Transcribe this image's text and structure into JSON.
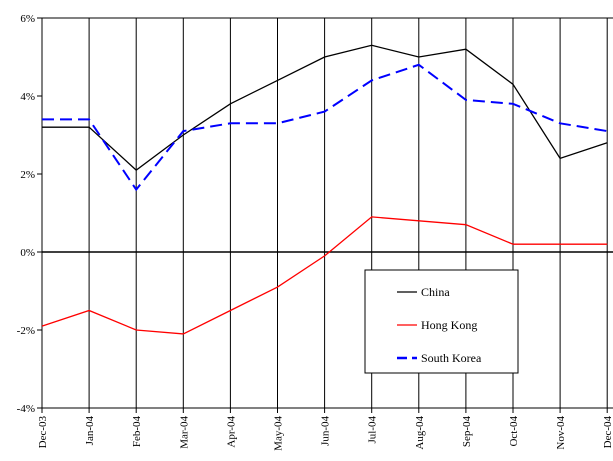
{
  "chart_data": {
    "type": "line",
    "title": "",
    "xlabel": "",
    "ylabel": "",
    "categories": [
      "Dec-03",
      "Jan-04",
      "Feb-04",
      "Mar-04",
      "Apr-04",
      "May-04",
      "Jun-04",
      "Jul-04",
      "Aug-04",
      "Sep-04",
      "Oct-04",
      "Nov-04",
      "Dec-04"
    ],
    "ylim": [
      -4,
      6
    ],
    "yticks": [
      -4,
      -2,
      0,
      2,
      4,
      6
    ],
    "ytick_labels": [
      "-4%",
      "-2%",
      "0%",
      "2%",
      "4%",
      "6%"
    ],
    "grid": "vertical",
    "legend_position": "bottom-right",
    "series": [
      {
        "name": "China",
        "color": "#000000",
        "dash": "solid",
        "values": [
          3.2,
          3.2,
          2.1,
          3.0,
          3.8,
          4.4,
          5.0,
          5.3,
          5.0,
          5.2,
          4.3,
          2.4,
          2.8
        ]
      },
      {
        "name": "Hong Kong",
        "color": "#ff0000",
        "dash": "solid",
        "values": [
          -1.9,
          -1.5,
          -2.0,
          -2.1,
          -1.5,
          -0.9,
          -0.1,
          0.9,
          0.8,
          0.7,
          0.2,
          0.2,
          0.2
        ]
      },
      {
        "name": "South Korea",
        "color": "#0000ff",
        "dash": "dashed",
        "values": [
          3.4,
          3.4,
          1.6,
          3.1,
          3.3,
          3.3,
          3.6,
          4.4,
          4.8,
          3.9,
          3.8,
          3.3,
          3.1
        ]
      }
    ]
  }
}
